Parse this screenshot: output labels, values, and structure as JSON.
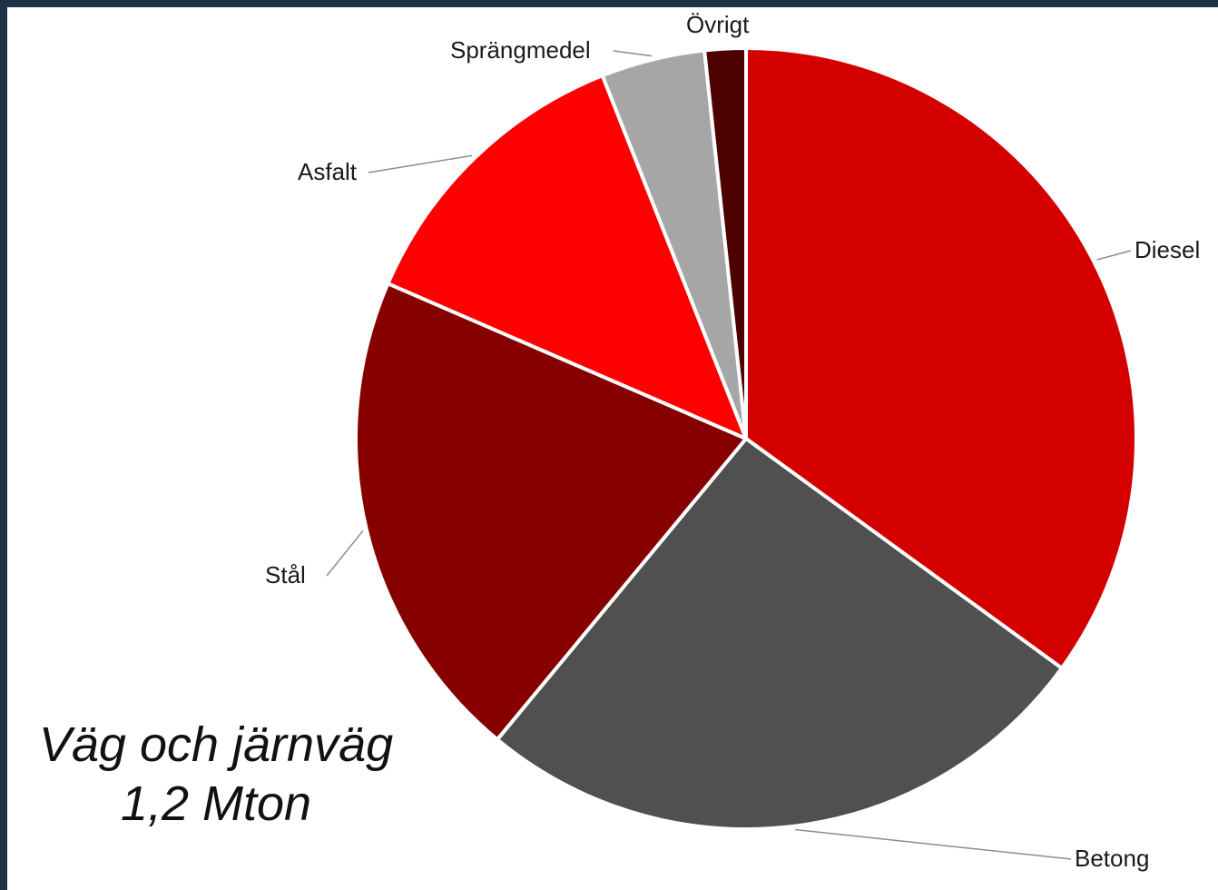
{
  "chart_data": {
    "type": "pie",
    "categories": [
      "Diesel",
      "Betong",
      "Stål",
      "Asfalt",
      "Sprängmedel",
      "Övrigt"
    ],
    "values": [
      35,
      26,
      20.5,
      12.5,
      4.3,
      1.7
    ],
    "colors": [
      "#d40000",
      "#505050",
      "#860000",
      "#ff0000",
      "#a6a6a6",
      "#4d0000"
    ],
    "start_angle_deg": 0,
    "direction": "clockwise",
    "legend": "none",
    "annotation": {
      "line1": "Väg och järnväg",
      "line2": "1,2 Mton"
    }
  }
}
